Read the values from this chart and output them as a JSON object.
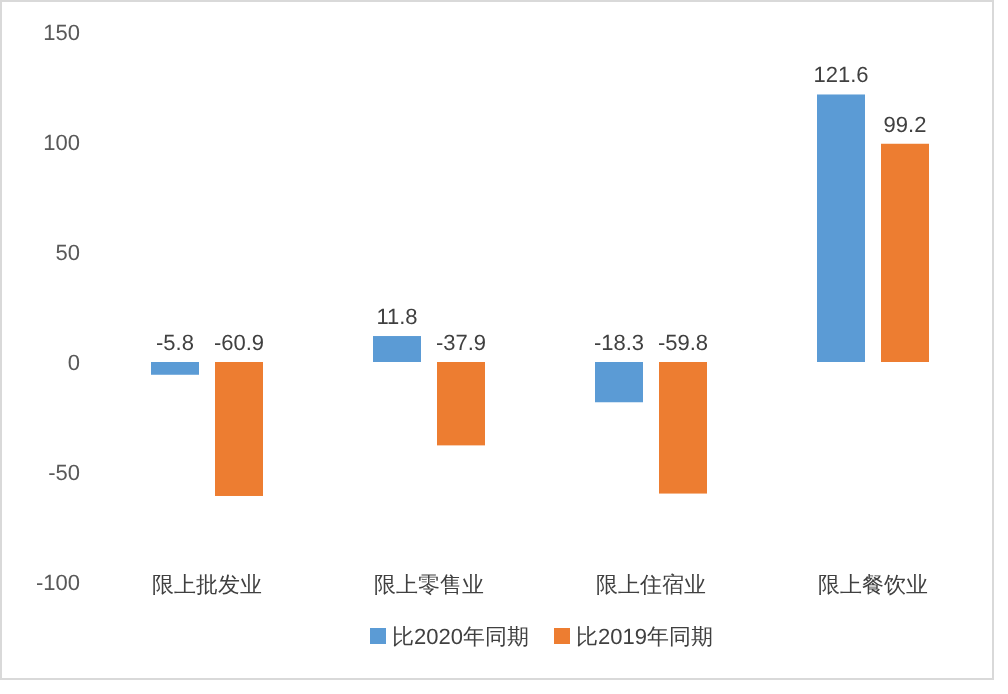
{
  "chart_data": {
    "type": "bar",
    "categories": [
      "限上批发业",
      "限上零售业",
      "限上住宿业",
      "限上餐饮业"
    ],
    "series": [
      {
        "name": "比2020年同期",
        "color": "#5b9bd5",
        "values": [
          -5.8,
          11.8,
          -18.3,
          121.6
        ]
      },
      {
        "name": "比2019年同期",
        "color": "#ed7d31",
        "values": [
          -60.9,
          -37.9,
          -59.8,
          99.2
        ]
      }
    ],
    "ylim": [
      -100,
      150
    ],
    "yticks": [
      -100,
      -50,
      0,
      50,
      100,
      150
    ],
    "data_labels": true,
    "legend": "bottom"
  }
}
